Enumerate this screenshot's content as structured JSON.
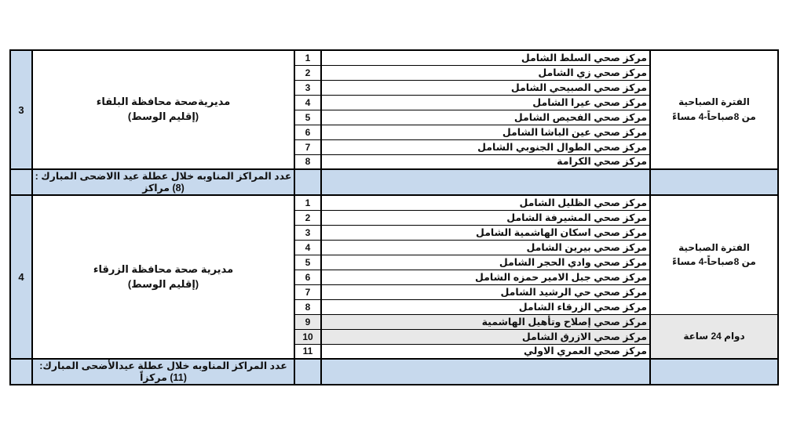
{
  "colors": {
    "page_bg": "#ffffff",
    "highlight_blue": "#c7d9ed",
    "shade_gray": "#e8e8e8",
    "border": "#000000",
    "text": "#111111"
  },
  "sections": [
    {
      "index": "3",
      "directorate": [
        "مديريةصحة محافظة البلقاء",
        "(إقليم الوسط)"
      ],
      "centers": [
        {
          "num": "1",
          "name": "مركز صحي السلط الشامل",
          "shaded": false
        },
        {
          "num": "2",
          "name": "مركز صحي زي الشامل",
          "shaded": false
        },
        {
          "num": "3",
          "name": "مركز صحي الصبيحي الشامل",
          "shaded": false
        },
        {
          "num": "4",
          "name": "مركز صحي عيرا الشامل",
          "shaded": false
        },
        {
          "num": "5",
          "name": "مركز صحي الفحيص الشامل",
          "shaded": false
        },
        {
          "num": "6",
          "name": "مركز صحي عين الباشا الشامل",
          "shaded": false
        },
        {
          "num": "7",
          "name": "مركز صحي الطوال الجنوبي الشامل",
          "shaded": false
        },
        {
          "num": "8",
          "name": "مركز صحي الكرامة",
          "shaded": false
        }
      ],
      "time_blocks": [
        {
          "lines": [
            "الفترة الصباحية",
            "من 8صباحاً-4 مساءً"
          ],
          "rows": 8,
          "shaded": false
        }
      ],
      "summary": "عدد المراكز المناوبه خلال عطلة عيد االاضحى المبارك :   (8) مراكز"
    },
    {
      "index": "4",
      "directorate": [
        "مديرية صحة  محافظة الزرقاء",
        "(إقليم الوسط)"
      ],
      "centers": [
        {
          "num": "1",
          "name": "مركز صحي الظليل الشامل",
          "shaded": false
        },
        {
          "num": "2",
          "name": "مركز صحي المشيرفة الشامل",
          "shaded": false
        },
        {
          "num": "3",
          "name": "مركز صحي اسكان الهاشمية الشامل",
          "shaded": false
        },
        {
          "num": "4",
          "name": "مركز صحي بيرين الشامل",
          "shaded": false
        },
        {
          "num": "5",
          "name": "مركز صحي وادي الحجر الشامل",
          "shaded": false
        },
        {
          "num": "6",
          "name": "مركز صحي جبل الامير حمزه الشامل",
          "shaded": false
        },
        {
          "num": "7",
          "name": "مركز صحي حي الرشيد الشامل",
          "shaded": false
        },
        {
          "num": "8",
          "name": "مركز صحي الزرقاء الشامل",
          "shaded": false
        },
        {
          "num": "9",
          "name": "مركز صحي إصلاح وتأهيل الهاشمية",
          "shaded": true
        },
        {
          "num": "10",
          "name": "مركز صحي الازرق الشامل",
          "shaded": true
        },
        {
          "num": "11",
          "name": "مركز صحي العمري الاولي",
          "shaded": false
        }
      ],
      "time_blocks": [
        {
          "lines": [
            "الفترة الصباحية",
            "من 8صباحاً-4 مساءً"
          ],
          "rows": 8,
          "shaded": false
        },
        {
          "lines": [
            "دوام 24 ساعة"
          ],
          "rows": 3,
          "shaded": true
        }
      ],
      "summary": "عدد المراكز المناوبه خلال عطلة عيدالأضحى المبارك: (11) مركزاً"
    }
  ]
}
